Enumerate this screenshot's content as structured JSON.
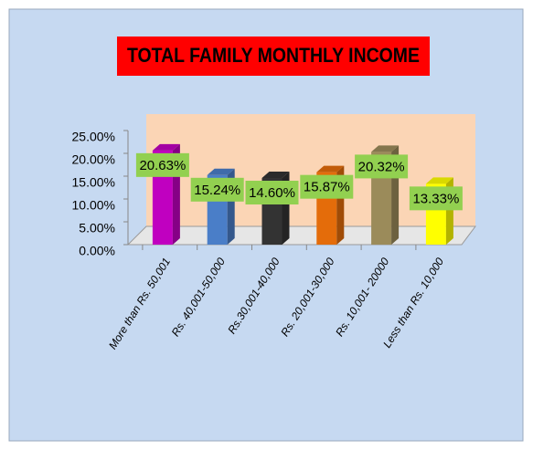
{
  "chart_data": {
    "type": "bar3d",
    "title": "TOTAL FAMILY MONTHLY  INCOME",
    "categories": [
      "More than Rs. 50,001",
      "Rs. 40,001-50,000",
      "Rs.30,001-40,000",
      "Rs. 20,001-30,000",
      "Rs. 10,001- 20000",
      "Less than Rs. 10,000"
    ],
    "values": [
      20.63,
      15.24,
      14.6,
      15.87,
      20.32,
      13.33
    ],
    "value_labels": [
      "20.63%",
      "15.24%",
      "14.60%",
      "15.87%",
      "20.32%",
      "13.33%"
    ],
    "colors": [
      "#c000c0",
      "#4a7ec8",
      "#333333",
      "#e46c0a",
      "#9b8b5a",
      "#ffff00"
    ],
    "ylim": [
      0,
      25
    ],
    "yticks": [
      {
        "value": 0,
        "label": "0.00%"
      },
      {
        "value": 5,
        "label": "5.00%"
      },
      {
        "value": 10,
        "label": "10.00%"
      },
      {
        "value": 15,
        "label": "15.00%"
      },
      {
        "value": 20,
        "label": "20.00%"
      },
      {
        "value": 25,
        "label": "25.00%"
      }
    ]
  }
}
